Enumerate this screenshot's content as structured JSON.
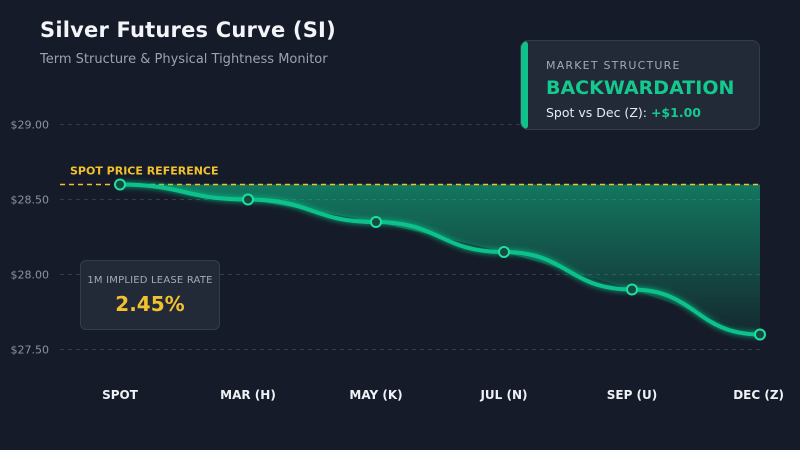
{
  "header": {
    "title": "Silver Futures Curve (SI)",
    "subtitle": "Term Structure & Physical Tightness Monitor"
  },
  "market_structure": {
    "label": "MARKET STRUCTURE",
    "value": "BACKWARDATION",
    "spread_label": "Spot vs Dec (Z):",
    "spread_value": "+$1.00"
  },
  "lease_rate": {
    "label": "1M IMPLIED LEASE RATE",
    "value": "2.45%"
  },
  "colors": {
    "background": "#151b28",
    "curve": "#10c28a",
    "reference": "#f2c12e",
    "grid": "#343c4c"
  },
  "chart_data": {
    "type": "line",
    "title": "Silver Futures Curve (SI)",
    "subtitle": "Term Structure & Physical Tightness Monitor",
    "categories": [
      "SPOT",
      "MAR (H)",
      "MAY (K)",
      "JUL (N)",
      "SEP (U)",
      "DEC (Z)"
    ],
    "series": [
      {
        "values": [
          28.6,
          28.5,
          28.35,
          28.15,
          27.9,
          27.6
        ]
      }
    ],
    "y_ticks": [
      27.5,
      28.0,
      28.5,
      29.0
    ],
    "y_tick_labels": [
      "$27.50",
      "$28.00",
      "$28.50",
      "$29.00"
    ],
    "ylim": [
      27.45,
      29.1
    ],
    "reference_line": {
      "label": "SPOT PRICE REFERENCE",
      "value": 28.6
    },
    "area_fill": "between reference and curve",
    "grid": true,
    "legend": "none"
  }
}
